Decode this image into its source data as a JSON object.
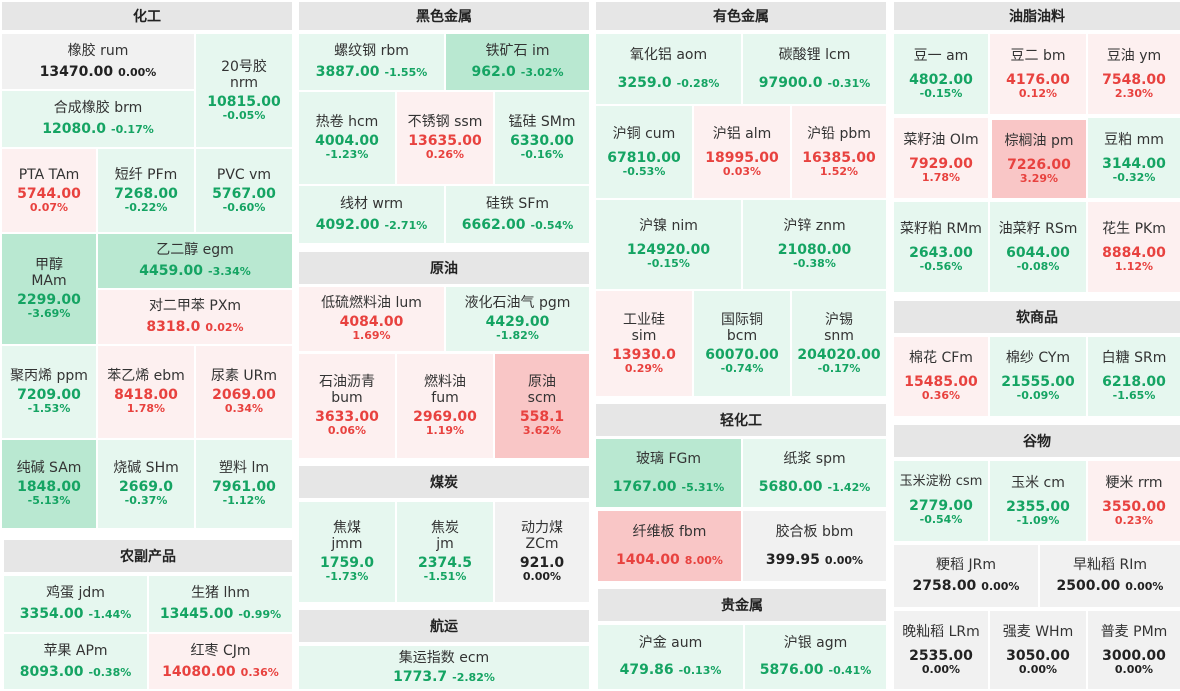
{
  "sections": {
    "s1": "化工",
    "s2": "黑色金属",
    "s3": "有色金属",
    "s4": "油脂油料",
    "s5": "农副产品",
    "s6": "原油",
    "s7": "煤炭",
    "s8": "航运",
    "s9": "轻化工",
    "s10": "贵金属",
    "s11": "软商品",
    "s12": "谷物"
  },
  "cells": {
    "c1": {
      "name": "橡胶  rum",
      "price": "13470.00",
      "chg": "0.00%"
    },
    "c2": {
      "name": "20号胶",
      "code": "nrm",
      "price": "10815.00",
      "chg": "-0.05%"
    },
    "c3": {
      "name": "合成橡胶  brm",
      "price": "12080.0",
      "chg": "-0.17%"
    },
    "c4": {
      "name": "PTA  TAm",
      "price": "5744.00",
      "chg": "0.07%"
    },
    "c5": {
      "name": "短纤  PFm",
      "price": "7268.00",
      "chg": "-0.22%"
    },
    "c6": {
      "name": "PVC  vm",
      "price": "5767.00",
      "chg": "-0.60%"
    },
    "c7": {
      "name": "甲醇",
      "code": "MAm",
      "price": "2299.00",
      "chg": "-3.69%"
    },
    "c8": {
      "name": "乙二醇  egm",
      "price": "4459.00",
      "chg": "-3.34%"
    },
    "c9": {
      "name": "对二甲苯  PXm",
      "price": "8318.0",
      "chg": "0.02%"
    },
    "c10": {
      "name": "聚丙烯  ppm",
      "price": "7209.00",
      "chg": "-1.53%"
    },
    "c11": {
      "name": "苯乙烯  ebm",
      "price": "8418.00",
      "chg": "1.78%"
    },
    "c12": {
      "name": "尿素  URm",
      "price": "2069.00",
      "chg": "0.34%"
    },
    "c13": {
      "name": "纯碱  SAm",
      "price": "1848.00",
      "chg": "-5.13%"
    },
    "c14": {
      "name": "烧碱  SHm",
      "price": "2669.0",
      "chg": "-0.37%"
    },
    "c15": {
      "name": "塑料  lm",
      "price": "7961.00",
      "chg": "-1.12%"
    },
    "c16": {
      "name": "螺纹钢  rbm",
      "price": "3887.00",
      "chg": "-1.55%"
    },
    "c17": {
      "name": "铁矿石  im",
      "price": "962.0",
      "chg": "-3.02%"
    },
    "c18": {
      "name": "热卷  hcm",
      "price": "4004.00",
      "chg": "-1.23%"
    },
    "c19": {
      "name": "不锈钢  ssm",
      "price": "13635.00",
      "chg": "0.26%"
    },
    "c20": {
      "name": "锰硅  SMm",
      "price": "6330.00",
      "chg": "-0.16%"
    },
    "c21": {
      "name": "线材  wrm",
      "price": "4092.00",
      "chg": "-2.71%"
    },
    "c22": {
      "name": "硅铁  SFm",
      "price": "6662.00",
      "chg": "-0.54%"
    },
    "c23": {
      "name": "低硫燃料油  lum",
      "price": "4084.00",
      "chg": "1.69%"
    },
    "c24": {
      "name": "液化石油气  pgm",
      "price": "4429.00",
      "chg": "-1.82%"
    },
    "c25": {
      "name": "石油沥青",
      "code": "bum",
      "price": "3633.00",
      "chg": "0.06%"
    },
    "c26": {
      "name": "燃料油",
      "code": "fum",
      "price": "2969.00",
      "chg": "1.19%"
    },
    "c27": {
      "name": "原油",
      "code": "scm",
      "price": "558.1",
      "chg": "3.62%"
    },
    "c28": {
      "name": "焦煤",
      "code": "jmm",
      "price": "1759.0",
      "chg": "-1.73%"
    },
    "c29": {
      "name": "焦炭",
      "code": "jm",
      "price": "2374.5",
      "chg": "-1.51%"
    },
    "c30": {
      "name": "动力煤",
      "code": "ZCm",
      "price": "921.0",
      "chg": "0.00%"
    },
    "c31": {
      "name": "集运指数  ecm",
      "price": "1773.7",
      "chg": "-2.82%"
    },
    "c32": {
      "name": "鸡蛋  jdm",
      "price": "3354.00",
      "chg": "-1.44%"
    },
    "c33": {
      "name": "生猪  lhm",
      "price": "13445.00",
      "chg": "-0.99%"
    },
    "c34": {
      "name": "苹果  APm",
      "price": "8093.00",
      "chg": "-0.38%"
    },
    "c35": {
      "name": "红枣  CJm",
      "price": "14080.00",
      "chg": "0.36%"
    },
    "c36": {
      "name": "氧化铝  aom",
      "price": "3259.0",
      "chg": "-0.28%"
    },
    "c37": {
      "name": "碳酸锂  lcm",
      "price": "97900.0",
      "chg": "-0.31%"
    },
    "c38": {
      "name": "沪铜  cum",
      "price": "67810.00",
      "chg": "-0.53%"
    },
    "c39": {
      "name": "沪铝  alm",
      "price": "18995.00",
      "chg": "0.03%"
    },
    "c40": {
      "name": "沪铅  pbm",
      "price": "16385.00",
      "chg": "1.52%"
    },
    "c41": {
      "name": "沪镍  nim",
      "price": "124920.00",
      "chg": "-0.15%"
    },
    "c42": {
      "name": "沪锌  znm",
      "price": "21080.00",
      "chg": "-0.38%"
    },
    "c43": {
      "name": "工业硅",
      "code": "sim",
      "price": "13930.0",
      "chg": "0.29%"
    },
    "c44": {
      "name": "国际铜",
      "code": "bcm",
      "price": "60070.00",
      "chg": "-0.74%"
    },
    "c45": {
      "name": "沪锡",
      "code": "snm",
      "price": "204020.00",
      "chg": "-0.17%"
    },
    "c46": {
      "name": "玻璃  FGm",
      "price": "1767.00",
      "chg": "-5.31%"
    },
    "c47": {
      "name": "纸浆  spm",
      "price": "5680.00",
      "chg": "-1.42%"
    },
    "c48": {
      "name": "纤维板  fbm",
      "price": "1404.00",
      "chg": "8.00%"
    },
    "c49": {
      "name": "胶合板  bbm",
      "price": "399.95",
      "chg": "0.00%"
    },
    "c50": {
      "name": "沪金  aum",
      "price": "479.86",
      "chg": "-0.13%"
    },
    "c51": {
      "name": "沪银  agm",
      "price": "5876.00",
      "chg": "-0.41%"
    },
    "c52": {
      "name": "豆一  am",
      "price": "4802.00",
      "chg": "-0.15%"
    },
    "c53": {
      "name": "豆二  bm",
      "price": "4176.00",
      "chg": "0.12%"
    },
    "c54": {
      "name": "豆油  ym",
      "price": "7548.00",
      "chg": "2.30%"
    },
    "c55": {
      "name": "菜籽油  OIm",
      "price": "7929.00",
      "chg": "1.78%"
    },
    "c56": {
      "name": "棕榈油  pm",
      "price": "7226.00",
      "chg": "3.29%"
    },
    "c57": {
      "name": "豆粕  mm",
      "price": "3144.00",
      "chg": "-0.32%"
    },
    "c58": {
      "name": "菜籽粕  RMm",
      "price": "2643.00",
      "chg": "-0.56%"
    },
    "c59": {
      "name": "油菜籽  RSm",
      "price": "6044.00",
      "chg": "-0.08%"
    },
    "c60": {
      "name": "花生  PKm",
      "price": "8884.00",
      "chg": "1.12%"
    },
    "c61": {
      "name": "棉花  CFm",
      "price": "15485.00",
      "chg": "0.36%"
    },
    "c62": {
      "name": "棉纱  CYm",
      "price": "21555.00",
      "chg": "-0.09%"
    },
    "c63": {
      "name": "白糖  SRm",
      "price": "6218.00",
      "chg": "-1.65%"
    },
    "c64": {
      "name": "玉米淀粉  csm",
      "price": "2779.00",
      "chg": "-0.54%"
    },
    "c65": {
      "name": "玉米  cm",
      "price": "2355.00",
      "chg": "-1.09%"
    },
    "c66": {
      "name": "粳米  rrm",
      "price": "3550.00",
      "chg": "0.23%"
    },
    "c67": {
      "name": "粳稻  JRm",
      "price": "2758.00",
      "chg": "0.00%"
    },
    "c68": {
      "name": "早籼稻  RIm",
      "price": "2500.00",
      "chg": "0.00%"
    },
    "c69": {
      "name": "晚籼稻  LRm",
      "price": "2535.00",
      "chg": "0.00%"
    },
    "c70": {
      "name": "强麦  WHm",
      "price": "3050.00",
      "chg": "0.00%"
    },
    "c71": {
      "name": "普麦  PMm",
      "price": "3000.00",
      "chg": "0.00%"
    }
  }
}
